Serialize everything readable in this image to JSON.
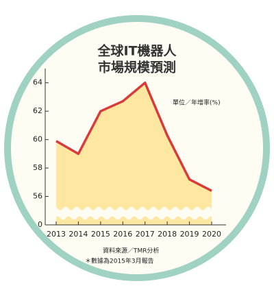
{
  "chart_data": {
    "type": "area",
    "title": [
      "全球IT機器人",
      "市場規模預測"
    ],
    "y_label": "單位／年增率(%)",
    "notes": [
      "資料來源／TMR分析",
      "＊數據為2015年3月報告"
    ],
    "categories": [
      "2013",
      "2014",
      "2015",
      "2016",
      "2017",
      "2018",
      "2019",
      "2020"
    ],
    "values": [
      59.9,
      59.0,
      62.0,
      62.7,
      64.0,
      60.3,
      57.2,
      56.4
    ],
    "color": "#d93a3a",
    "fill": "#fde7a1",
    "ylim": [
      0,
      65
    ],
    "yticks": [
      0,
      56,
      58,
      60,
      62,
      64
    ],
    "axis_break": true
  }
}
